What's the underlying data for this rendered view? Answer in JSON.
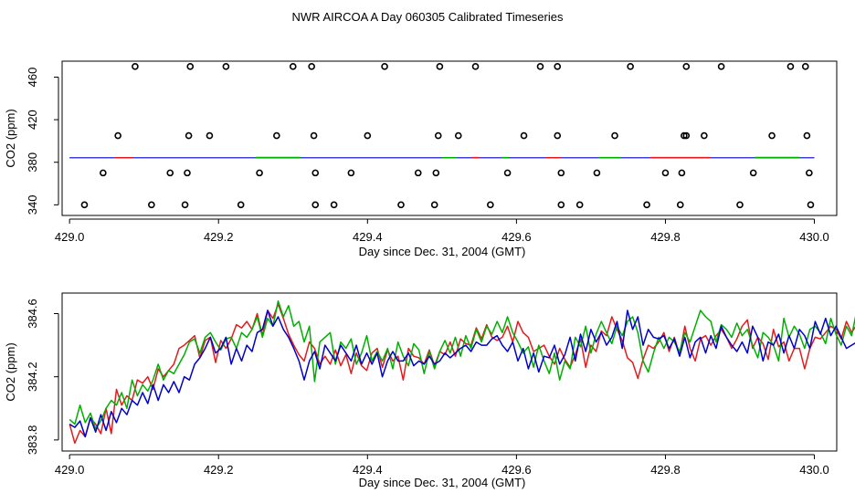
{
  "figure": {
    "title": "NWR AIRCOA A  Day 060305  Calibrated Timeseries"
  },
  "chart_data": [
    {
      "type": "scatter",
      "xlabel": "Day since Dec. 31, 2004 (GMT)",
      "ylabel": "CO2 (ppm)",
      "xlim": [
        428.99,
        430.03
      ],
      "ylim": [
        330,
        475
      ],
      "xticks": [
        429.0,
        429.2,
        429.4,
        429.6,
        429.8,
        430.0
      ],
      "xtick_labels": [
        "429.0",
        "429.2",
        "429.4",
        "429.6",
        "429.8",
        "430.0"
      ],
      "yticks": [
        340,
        380,
        420,
        460
      ],
      "ytick_labels": [
        "340",
        "380",
        "420",
        "460"
      ],
      "grid": false,
      "legend": "none",
      "colors": {
        "red": "#e41a1c",
        "green": "#00b000",
        "blue": "#0000cc",
        "points": "#000000"
      },
      "line_segments": [
        {
          "x0": 429.0,
          "x1": 430.0,
          "y": 384.2,
          "color": "blue"
        },
        {
          "x0": 429.06,
          "x1": 429.085,
          "y": 384.4,
          "color": "red"
        },
        {
          "x0": 429.25,
          "x1": 429.31,
          "y": 384.6,
          "color": "green"
        },
        {
          "x0": 429.5,
          "x1": 429.52,
          "y": 384.4,
          "color": "green"
        },
        {
          "x0": 429.54,
          "x1": 429.55,
          "y": 384.5,
          "color": "red"
        },
        {
          "x0": 429.58,
          "x1": 429.59,
          "y": 384.5,
          "color": "green"
        },
        {
          "x0": 429.64,
          "x1": 429.66,
          "y": 384.4,
          "color": "red"
        },
        {
          "x0": 429.71,
          "x1": 429.74,
          "y": 384.5,
          "color": "green"
        },
        {
          "x0": 429.78,
          "x1": 429.86,
          "y": 384.5,
          "color": "red"
        },
        {
          "x0": 429.92,
          "x1": 429.98,
          "y": 384.6,
          "color": "green"
        }
      ],
      "points": {
        "y": [
          340,
          370,
          405,
          470
        ],
        "340": [
          429.02,
          429.11,
          429.155,
          429.23,
          429.33,
          429.355,
          429.445,
          429.49,
          429.565,
          429.66,
          429.685,
          429.775,
          429.82,
          429.9,
          429.995
        ],
        "370": [
          429.045,
          429.135,
          429.158,
          429.255,
          429.33,
          429.378,
          429.468,
          429.492,
          429.588,
          429.66,
          429.708,
          429.8,
          429.822,
          429.918,
          429.993
        ],
        "405": [
          429.065,
          429.16,
          429.188,
          429.278,
          429.328,
          429.4,
          429.495,
          429.522,
          429.61,
          429.655,
          429.732,
          429.825,
          429.828,
          429.852,
          429.943,
          429.99
        ],
        "470": [
          429.088,
          429.162,
          429.21,
          429.3,
          429.325,
          429.423,
          429.497,
          429.545,
          429.632,
          429.655,
          429.753,
          429.828,
          429.875,
          429.968,
          429.988
        ]
      }
    },
    {
      "type": "line",
      "xlabel": "Day since Dec. 31, 2004 (GMT)",
      "ylabel": "CO2 (ppm)",
      "xlim": [
        428.99,
        430.03
      ],
      "ylim": [
        383.73,
        384.73
      ],
      "xticks": [
        429.0,
        429.2,
        429.4,
        429.6,
        429.8,
        430.0
      ],
      "xtick_labels": [
        "429.0",
        "429.2",
        "429.4",
        "429.6",
        "429.8",
        "430.0"
      ],
      "yticks": [
        383.8,
        384.2,
        384.6
      ],
      "ytick_labels": [
        "383.8",
        "384.2",
        "384.6"
      ],
      "grid": false,
      "legend": "none",
      "series": [
        {
          "color": "#e41a1c",
          "x0": 429.0,
          "dx": 0.007,
          "values": [
            383.9,
            383.78,
            383.86,
            383.82,
            383.94,
            383.9,
            383.84,
            384.0,
            383.84,
            384.12,
            384.02,
            384.08,
            384.05,
            384.18,
            384.16,
            384.2,
            384.12,
            384.25,
            384.2,
            384.24,
            384.28,
            384.38,
            384.4,
            384.43,
            384.46,
            384.32,
            384.43,
            384.45,
            384.29,
            384.43,
            384.38,
            384.44,
            384.53,
            384.51,
            384.55,
            384.5,
            384.6,
            384.46,
            384.62,
            384.57,
            384.66,
            384.57,
            384.47,
            384.4,
            384.34,
            384.3,
            384.42,
            384.38,
            384.28,
            384.33,
            384.28,
            384.37,
            384.27,
            384.34,
            384.22,
            384.35,
            384.27,
            384.24,
            384.35,
            384.38,
            384.26,
            384.37,
            384.3,
            384.33,
            384.18,
            384.38,
            384.33,
            384.32,
            384.28,
            384.37,
            384.27,
            384.36,
            384.34,
            384.42,
            384.33,
            384.44,
            384.41,
            384.4,
            384.51,
            384.44,
            384.53,
            384.45,
            384.43,
            384.45,
            384.52,
            384.42,
            384.55,
            384.48,
            384.45,
            384.36,
            384.38,
            384.4,
            384.33,
            384.28,
            384.38,
            384.31,
            384.26,
            384.34,
            384.44,
            384.26,
            384.4,
            384.36,
            384.49,
            384.46,
            384.58,
            384.5,
            384.43,
            384.32,
            384.29,
            384.19,
            384.31,
            384.4,
            384.38,
            384.42,
            384.48,
            384.36,
            384.45,
            384.34,
            384.52,
            384.38,
            384.3,
            384.44,
            384.46,
            384.4,
            384.46,
            384.5,
            384.45,
            384.38,
            384.44,
            384.52,
            384.56,
            384.38,
            384.45,
            384.41,
            384.31,
            384.5,
            384.39,
            384.42,
            384.3,
            384.38,
            384.38,
            384.25,
            384.38,
            384.45,
            384.44,
            384.48,
            384.52,
            384.5,
            384.44,
            384.55,
            384.48,
            384.53,
            384.54
          ]
        },
        {
          "color": "#00b000",
          "x0": 429.0,
          "dx": 0.007,
          "values": [
            383.93,
            383.9,
            384.02,
            383.91,
            383.97,
            383.87,
            383.92,
            384.0,
            384.05,
            384.02,
            384.1,
            384.0,
            384.18,
            384.08,
            384.15,
            384.11,
            384.18,
            384.28,
            384.18,
            384.24,
            384.22,
            384.28,
            384.34,
            384.42,
            384.44,
            384.35,
            384.45,
            384.48,
            384.42,
            384.37,
            384.44,
            384.45,
            384.38,
            384.48,
            384.45,
            384.5,
            384.58,
            384.45,
            384.57,
            384.52,
            384.68,
            384.58,
            384.65,
            384.52,
            384.55,
            384.42,
            384.52,
            384.17,
            384.42,
            384.45,
            384.48,
            384.28,
            384.42,
            384.38,
            384.44,
            384.28,
            384.35,
            384.46,
            384.3,
            384.36,
            384.3,
            384.38,
            384.25,
            384.42,
            384.33,
            384.27,
            384.41,
            384.37,
            384.22,
            384.36,
            384.25,
            384.36,
            384.43,
            384.35,
            384.45,
            384.33,
            384.46,
            384.38,
            384.5,
            384.42,
            384.52,
            384.47,
            384.55,
            384.48,
            384.58,
            384.48,
            384.42,
            384.35,
            384.39,
            384.26,
            384.4,
            384.3,
            384.22,
            384.35,
            384.18,
            384.3,
            384.25,
            384.45,
            384.39,
            384.52,
            384.35,
            384.47,
            384.55,
            384.48,
            384.41,
            384.52,
            384.46,
            384.55,
            384.58,
            384.48,
            384.3,
            384.23,
            384.35,
            384.45,
            384.38,
            384.45,
            384.42,
            384.36,
            384.48,
            384.42,
            384.52,
            384.62,
            384.58,
            384.55,
            384.42,
            384.53,
            384.5,
            384.45,
            384.54,
            384.46,
            384.5,
            384.4,
            384.32,
            384.48,
            384.45,
            384.4,
            384.3,
            384.57,
            384.45,
            384.52,
            384.47,
            384.38,
            384.5,
            384.52,
            384.48,
            384.41,
            384.57,
            384.47,
            384.4,
            384.52,
            384.46,
            384.62,
            384.58,
            384.49
          ]
        },
        {
          "color": "#0000cc",
          "x0": 429.0,
          "dx": 0.007,
          "values": [
            383.9,
            383.88,
            383.92,
            383.82,
            383.94,
            383.85,
            383.96,
            383.86,
            383.98,
            383.91,
            384.0,
            383.96,
            384.05,
            384.02,
            384.1,
            384.03,
            384.15,
            384.05,
            384.15,
            384.1,
            384.17,
            384.1,
            384.2,
            384.18,
            384.28,
            384.32,
            384.38,
            384.45,
            384.35,
            384.38,
            384.45,
            384.28,
            384.38,
            384.3,
            384.4,
            384.36,
            384.48,
            384.5,
            384.62,
            384.52,
            384.58,
            384.5,
            384.45,
            384.38,
            384.3,
            384.18,
            384.3,
            384.36,
            384.25,
            384.4,
            384.35,
            384.3,
            384.4,
            384.35,
            384.3,
            384.4,
            384.28,
            384.35,
            384.28,
            384.35,
            384.2,
            384.3,
            384.36,
            384.3,
            384.3,
            384.35,
            384.27,
            384.3,
            384.28,
            384.33,
            384.28,
            384.3,
            384.35,
            384.32,
            384.35,
            384.38,
            384.4,
            384.36,
            384.42,
            384.4,
            384.4,
            384.44,
            384.46,
            384.4,
            384.36,
            384.42,
            384.3,
            384.38,
            384.25,
            384.35,
            384.23,
            384.33,
            384.32,
            384.4,
            384.28,
            384.34,
            384.45,
            384.3,
            384.47,
            384.36,
            384.5,
            384.42,
            384.48,
            384.4,
            384.45,
            384.55,
            384.38,
            384.62,
            384.5,
            384.58,
            384.4,
            384.5,
            384.45,
            384.44,
            384.46,
            384.38,
            384.44,
            384.33,
            384.45,
            384.32,
            384.42,
            384.45,
            384.35,
            384.46,
            384.38,
            384.52,
            384.45,
            384.4,
            384.36,
            384.42,
            384.35,
            384.52,
            384.45,
            384.3,
            384.42,
            384.4,
            384.47,
            384.35,
            384.46,
            384.38,
            384.5,
            384.46,
            384.38,
            384.55,
            384.47,
            384.57,
            384.46,
            384.52,
            384.45,
            384.38,
            384.4,
            384.42
          ]
        }
      ]
    }
  ]
}
